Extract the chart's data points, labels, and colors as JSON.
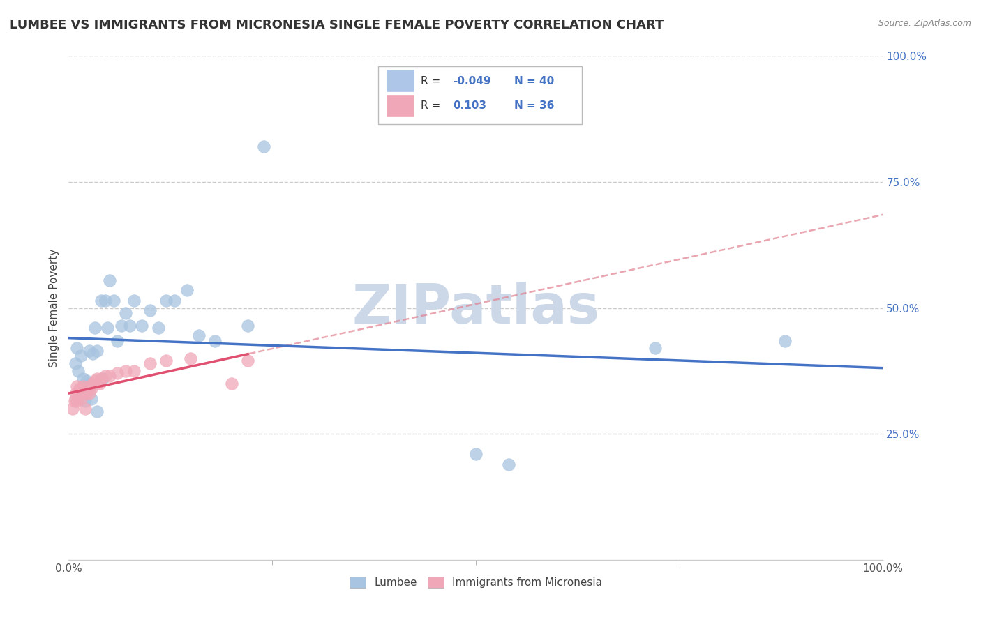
{
  "title": "LUMBEE VS IMMIGRANTS FROM MICRONESIA SINGLE FEMALE POVERTY CORRELATION CHART",
  "source": "Source: ZipAtlas.com",
  "ylabel": "Single Female Poverty",
  "watermark": "ZIPatlas",
  "legend_v1": "-0.049",
  "legend_n1": "N = 40",
  "legend_v2": "0.103",
  "legend_n2": "N = 36",
  "lumbee_color": "#a8c4e0",
  "micronesia_color": "#f0a8b8",
  "lumbee_line_color": "#4472c4",
  "micronesia_line_color": "#e05070",
  "micronesia_dash_color": "#e08090",
  "lumbee_x": [
    0.008,
    0.01,
    0.012,
    0.015,
    0.015,
    0.018,
    0.02,
    0.022,
    0.025,
    0.025,
    0.028,
    0.03,
    0.032,
    0.035,
    0.035,
    0.04,
    0.042,
    0.045,
    0.048,
    0.05,
    0.055,
    0.06,
    0.065,
    0.07,
    0.075,
    0.08,
    0.09,
    0.1,
    0.11,
    0.12,
    0.13,
    0.145,
    0.16,
    0.18,
    0.22,
    0.24,
    0.5,
    0.54,
    0.72,
    0.88
  ],
  "lumbee_y": [
    0.39,
    0.42,
    0.375,
    0.33,
    0.405,
    0.36,
    0.315,
    0.355,
    0.35,
    0.415,
    0.32,
    0.41,
    0.46,
    0.295,
    0.415,
    0.515,
    0.36,
    0.515,
    0.46,
    0.555,
    0.515,
    0.435,
    0.465,
    0.49,
    0.465,
    0.515,
    0.465,
    0.495,
    0.46,
    0.515,
    0.515,
    0.535,
    0.445,
    0.435,
    0.465,
    0.82,
    0.21,
    0.19,
    0.42,
    0.435
  ],
  "micronesia_x": [
    0.005,
    0.007,
    0.008,
    0.009,
    0.01,
    0.01,
    0.011,
    0.012,
    0.013,
    0.014,
    0.015,
    0.016,
    0.017,
    0.018,
    0.02,
    0.021,
    0.022,
    0.023,
    0.025,
    0.026,
    0.028,
    0.03,
    0.032,
    0.035,
    0.038,
    0.04,
    0.045,
    0.05,
    0.06,
    0.07,
    0.08,
    0.1,
    0.12,
    0.15,
    0.2,
    0.22
  ],
  "micronesia_y": [
    0.3,
    0.315,
    0.32,
    0.33,
    0.315,
    0.345,
    0.325,
    0.33,
    0.34,
    0.335,
    0.32,
    0.33,
    0.34,
    0.345,
    0.3,
    0.335,
    0.33,
    0.34,
    0.33,
    0.345,
    0.34,
    0.35,
    0.355,
    0.36,
    0.35,
    0.36,
    0.365,
    0.365,
    0.37,
    0.375,
    0.375,
    0.39,
    0.395,
    0.4,
    0.35,
    0.395
  ],
  "xlim": [
    0.0,
    1.0
  ],
  "ylim": [
    0.0,
    1.0
  ],
  "yticks": [
    0.25,
    0.5,
    0.75,
    1.0
  ],
  "ytick_labels": [
    "25.0%",
    "50.0%",
    "75.0%",
    "100.0%"
  ],
  "xtick_positions": [
    0.0,
    1.0
  ],
  "xtick_labels": [
    "0.0%",
    "100.0%"
  ],
  "grid_color": "#cccccc",
  "grid_style": "--",
  "background_color": "#ffffff",
  "title_fontsize": 13,
  "axis_label_fontsize": 11,
  "tick_fontsize": 11,
  "watermark_color": "#ccd8e8",
  "watermark_fontsize": 56,
  "legend_text_color": "#333333",
  "legend_value_color": "#4472c4"
}
